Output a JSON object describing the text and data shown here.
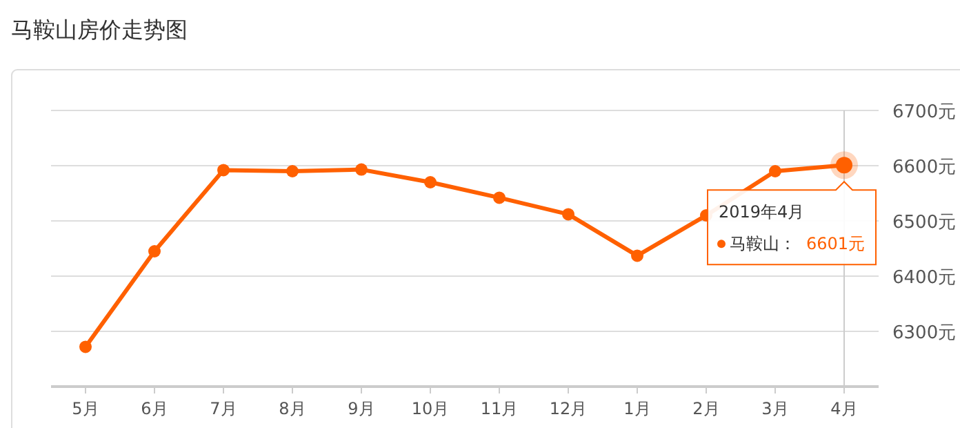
{
  "chart_data": {
    "type": "line",
    "title": "马鞍山房价走势图",
    "categories": [
      "5月",
      "6月",
      "7月",
      "8月",
      "9月",
      "10月",
      "11月",
      "12月",
      "1月",
      "2月",
      "3月",
      "4月"
    ],
    "series": [
      {
        "color": "#ff6000",
        "values": [
          6272,
          6445,
          6592,
          6590,
          6593,
          6570,
          6542,
          6512,
          6437,
          6510,
          6590,
          6601
        ]
      }
    ],
    "ylim": [
      6200,
      6700
    ],
    "yticks": [
      {
        "value": 6300,
        "label": "6300元"
      },
      {
        "value": 6400,
        "label": "6400元"
      },
      {
        "value": 6500,
        "label": "6500元"
      },
      {
        "value": 6600,
        "label": "6600元"
      },
      {
        "value": 6700,
        "label": "6700元"
      }
    ],
    "grid": "y",
    "marker": "circle",
    "line_style": "solid",
    "ref_lines": [
      {
        "axis": "x",
        "value": "4月",
        "color": "#cccccc"
      }
    ],
    "annotations": [
      "2019年4月",
      "马鞍山：",
      "6601元"
    ]
  }
}
